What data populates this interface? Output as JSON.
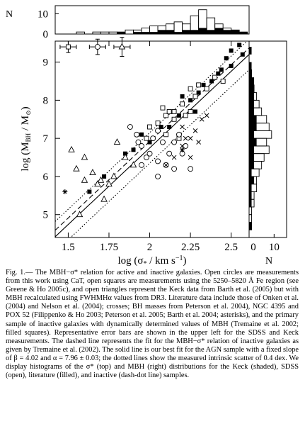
{
  "chart_data": {
    "type": "scatter",
    "xlabel": [
      "log (σ",
      "*",
      " / km s",
      "−1",
      ")"
    ],
    "ylabel": [
      "log (M",
      "BH",
      " / M",
      "⊙",
      ")"
    ],
    "xlim": [
      1.42,
      2.61
    ],
    "xticks": [
      1.5,
      1.75,
      2,
      2.25,
      2.5
    ],
    "ylim": [
      4.4,
      9.55
    ],
    "yticks": [
      5,
      6,
      7,
      8,
      9
    ],
    "series": [
      {
        "marker": "filled-square",
        "x": [
          2.5,
          2.55,
          2.57,
          2.47,
          2.42,
          2.38,
          2.35,
          2.3,
          2.25,
          2.28,
          2.18,
          2.2,
          2.07,
          1.95,
          1.9,
          2.0,
          2.12,
          1.85,
          1.63,
          1.72,
          2.33,
          2.44,
          2.5
        ],
        "values": [
          9.3,
          9.45,
          9.2,
          9.1,
          8.7,
          8.5,
          8.3,
          8.2,
          8.0,
          7.7,
          7.6,
          8.1,
          7.3,
          7.1,
          6.7,
          6.9,
          7.3,
          6.6,
          5.6,
          6.0,
          8.4,
          8.8,
          8.9
        ]
      },
      {
        "marker": "open-square",
        "x": [
          2.1,
          2.12,
          2.15,
          2.2,
          2.05,
          2.0,
          2.22,
          2.25,
          2.3,
          2.35,
          2.18,
          2.1,
          1.98,
          2.25,
          2.08,
          2.15,
          2.4,
          2.45,
          2.28
        ],
        "values": [
          7.6,
          7.7,
          7.5,
          7.9,
          7.4,
          7.3,
          7.6,
          8.3,
          8.4,
          8.3,
          7.0,
          7.1,
          7.0,
          7.7,
          7.8,
          7.7,
          8.6,
          8.5,
          8.1
        ]
      },
      {
        "marker": "open-circle",
        "x": [
          1.88,
          1.92,
          1.95,
          2.0,
          2.05,
          2.1,
          2.15,
          2.2,
          2.25,
          2.08,
          1.98,
          2.02,
          1.95,
          2.12,
          2.18,
          2.05,
          2.15,
          2.22,
          2.05,
          1.93
        ],
        "values": [
          7.3,
          7.1,
          6.8,
          6.6,
          6.4,
          6.3,
          6.2,
          6.6,
          6.2,
          6.9,
          6.5,
          7.0,
          6.3,
          6.6,
          7.1,
          7.2,
          6.9,
          6.8,
          6.0,
          6.9
        ]
      },
      {
        "marker": "open-triangle",
        "x": [
          1.52,
          1.55,
          1.65,
          1.7,
          1.72,
          1.75,
          1.8,
          1.85,
          1.6,
          1.9,
          1.57,
          1.68,
          1.78,
          1.6
        ],
        "values": [
          6.7,
          6.2,
          6.1,
          5.9,
          5.4,
          5.8,
          6.9,
          6.5,
          5.9,
          6.3,
          5.0,
          5.8,
          6.0,
          6.5
        ]
      },
      {
        "marker": "cross",
        "x": [
          2.15,
          2.2,
          2.25,
          2.28,
          2.32,
          2.35,
          2.2,
          2.1,
          2.25,
          2.3,
          2.22
        ],
        "values": [
          6.5,
          6.8,
          7.0,
          7.2,
          7.5,
          7.6,
          7.3,
          6.3,
          6.5,
          6.9,
          7.0
        ]
      },
      {
        "marker": "asterisk",
        "x": [
          1.48,
          2.2
        ],
        "values": [
          5.6,
          6.7
        ]
      }
    ],
    "error_bars": {
      "markers": [
        "open-square",
        "open-circle",
        "open-triangle"
      ],
      "x": [
        1.5,
        1.68,
        1.83
      ],
      "values": [
        9.4,
        9.4,
        9.4
      ],
      "xerr": [
        0.05,
        0.05,
        0.05
      ],
      "yerr": [
        0.15,
        0.2,
        0.25
      ]
    },
    "fit_lines": [
      {
        "style": "solid",
        "x": [
          1.42,
          2.61
        ],
        "y": [
          4.42,
          9.2
        ]
      },
      {
        "style": "dashed",
        "x": [
          1.42,
          2.61
        ],
        "y": [
          4.59,
          9.37
        ]
      },
      {
        "style": "dotted",
        "x": [
          1.42,
          2.61
        ],
        "y": [
          4.82,
          9.6
        ]
      },
      {
        "style": "dotted",
        "x": [
          1.42,
          2.61
        ],
        "y": [
          4.02,
          8.8
        ]
      }
    ],
    "top_histogram": {
      "ylabel": "N",
      "ylim": [
        0,
        14
      ],
      "yticks": [
        0,
        10
      ],
      "bins": [
        1.4,
        1.45,
        1.5,
        1.55,
        1.6,
        1.65,
        1.7,
        1.75,
        1.8,
        1.85,
        1.9,
        1.95,
        2.0,
        2.05,
        2.1,
        2.15,
        2.2,
        2.25,
        2.3,
        2.35,
        2.4,
        2.45,
        2.5,
        2.55,
        2.6
      ],
      "open": [
        0,
        0,
        0,
        1,
        0,
        1,
        1,
        1,
        1,
        2,
        2,
        3,
        4,
        4,
        5,
        6,
        5,
        9,
        12,
        8,
        5,
        3,
        2,
        1
      ],
      "filled": [
        0,
        0,
        0,
        0,
        0,
        0,
        0,
        0,
        1,
        0,
        1,
        1,
        1,
        2,
        2,
        1,
        2,
        2,
        3,
        2,
        3,
        2,
        2,
        1
      ]
    },
    "right_histogram": {
      "xlabel": "N",
      "xlim": [
        0,
        15
      ],
      "xticks": [
        0,
        10
      ],
      "bins": [
        4.4,
        4.6,
        4.8,
        5.0,
        5.2,
        5.4,
        5.6,
        5.8,
        6.0,
        6.2,
        6.4,
        6.6,
        6.8,
        7.0,
        7.2,
        7.4,
        7.6,
        7.8,
        8.0,
        8.2,
        8.4,
        8.6,
        8.8,
        9.0,
        9.2,
        9.4,
        9.6
      ],
      "open": [
        0,
        1,
        1,
        1,
        2,
        2,
        3,
        3,
        4,
        5,
        6,
        8,
        7,
        9,
        8,
        7,
        5,
        4,
        3,
        2,
        1,
        1,
        0,
        0,
        0,
        0
      ],
      "filled": [
        0,
        1,
        0,
        0,
        1,
        1,
        1,
        2,
        1,
        2,
        2,
        2,
        3,
        2,
        3,
        3,
        2,
        2,
        2,
        2,
        2,
        1,
        1,
        0,
        1,
        0
      ]
    }
  },
  "caption": "Fig. 1.— The MBH−σ* relation for active and inactive galaxies. Open circles are measurements from this work using CaT, open squares are measurements using the 5250–5820 Å Fe region (see Greene & Ho 2005c), and open triangles represent the Keck data from Barth et al. (2005) but with MBH recalculated using FWHMHα values from DR3. Literature data include those of Onken et al. (2004) and Nelson et al. (2004); crosses; BH masses from Peterson et al. 2004), NGC 4395 and POX 52 (Filippenko & Ho 2003; Peterson et al. 2005; Barth et al. 2004; asterisks), and the primary sample of inactive galaxies with dynamically determined values of MBH (Tremaine et al. 2002; filled squares). Representative error bars are shown in the upper left for the SDSS and Keck measurements. The dashed line represents the fit for the MBH−σ* relation of inactive galaxies as given by Tremaine et al. (2002). The solid line is our best fit for the AGN sample with a fixed slope of β = 4.02 and α = 7.96 ± 0.03; the dotted lines show the measured intrinsic scatter of 0.4 dex. We display histograms of the σ* (top) and MBH (right) distributions for the Keck (shaded), SDSS (open), literature (filled), and inactive (dash-dot line) samples."
}
